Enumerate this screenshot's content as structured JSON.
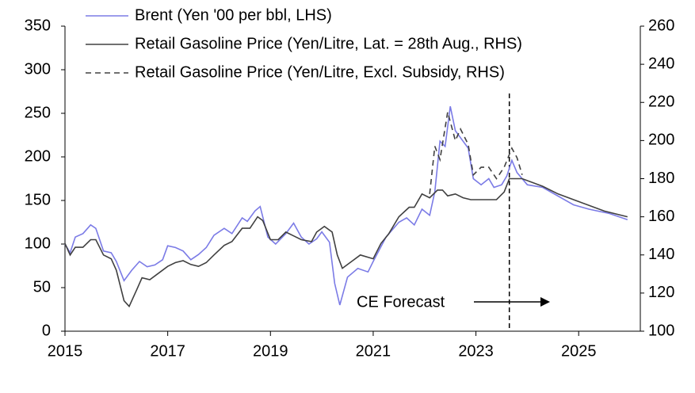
{
  "chart_data": {
    "type": "line",
    "series": [
      {
        "name": "Brent (Yen '00 per bbl, LHS)",
        "color": "#7b7be6",
        "dash": false,
        "axis": "y",
        "x": [
          2015.0,
          2015.1,
          2015.2,
          2015.35,
          2015.5,
          2015.6,
          2015.75,
          2015.9,
          2016.0,
          2016.15,
          2016.3,
          2016.45,
          2016.6,
          2016.75,
          2016.9,
          2017.0,
          2017.15,
          2017.3,
          2017.45,
          2017.6,
          2017.75,
          2017.9,
          2018.1,
          2018.25,
          2018.45,
          2018.55,
          2018.7,
          2018.8,
          2018.95,
          2019.1,
          2019.3,
          2019.45,
          2019.6,
          2019.75,
          2019.9,
          2020.0,
          2020.15,
          2020.25,
          2020.35,
          2020.5,
          2020.7,
          2020.9,
          2021.0,
          2021.25,
          2021.5,
          2021.65,
          2021.8,
          2021.95,
          2022.1,
          2022.2,
          2022.3,
          2022.4,
          2022.5,
          2022.6,
          2022.7,
          2022.85,
          2022.95,
          2023.1,
          2023.25,
          2023.35,
          2023.5,
          2023.6,
          2023.7,
          2023.8,
          2024.0,
          2024.3,
          2024.6,
          2024.9,
          2025.2,
          2025.6,
          2025.95
        ],
        "values": [
          100,
          90,
          108,
          112,
          122,
          118,
          92,
          90,
          80,
          58,
          70,
          80,
          74,
          76,
          82,
          98,
          96,
          92,
          82,
          88,
          96,
          110,
          118,
          112,
          130,
          126,
          138,
          143,
          108,
          100,
          112,
          124,
          108,
          100,
          106,
          114,
          102,
          55,
          30,
          62,
          72,
          68,
          80,
          108,
          125,
          130,
          122,
          140,
          133,
          160,
          218,
          212,
          258,
          230,
          222,
          210,
          175,
          168,
          175,
          165,
          168,
          178,
          196,
          182,
          168,
          165,
          155,
          145,
          140,
          135,
          128
        ]
      },
      {
        "name": "Retail Gasoline Price (Yen/Litre, Lat. = 28th Aug., RHS)",
        "color": "#404040",
        "dash": false,
        "axis": "y2",
        "x": [
          2015.0,
          2015.1,
          2015.2,
          2015.35,
          2015.5,
          2015.6,
          2015.75,
          2015.9,
          2016.0,
          2016.15,
          2016.25,
          2016.4,
          2016.5,
          2016.65,
          2016.8,
          2017.0,
          2017.15,
          2017.3,
          2017.45,
          2017.6,
          2017.75,
          2017.9,
          2018.1,
          2018.25,
          2018.45,
          2018.6,
          2018.75,
          2018.85,
          2019.0,
          2019.15,
          2019.3,
          2019.45,
          2019.6,
          2019.8,
          2019.9,
          2020.05,
          2020.2,
          2020.3,
          2020.4,
          2020.6,
          2020.75,
          2021.0,
          2021.15,
          2021.3,
          2021.5,
          2021.7,
          2021.8,
          2021.95,
          2022.1,
          2022.25,
          2022.35,
          2022.45,
          2022.6,
          2022.75,
          2022.9,
          2023.2,
          2023.4,
          2023.55,
          2023.65,
          2023.75,
          2023.9,
          2024.3,
          2024.6,
          2025.0,
          2025.5,
          2025.95
        ],
        "values": [
          146,
          140,
          144,
          144,
          148,
          148,
          140,
          138,
          132,
          116,
          113,
          122,
          128,
          127,
          130,
          134,
          136,
          137,
          135,
          134,
          136,
          140,
          145,
          147,
          154,
          154,
          160,
          158,
          148,
          148,
          152,
          150,
          148,
          147,
          152,
          155,
          152,
          140,
          133,
          137,
          140,
          138,
          146,
          151,
          160,
          165,
          165,
          172,
          170,
          174,
          174,
          171,
          172,
          170,
          169,
          169,
          169,
          173,
          180,
          180,
          180,
          176,
          172,
          168,
          163,
          160
        ]
      },
      {
        "name": "Retail Gasoline Price (Yen/Litre, Excl. Subsidy, RHS)",
        "color": "#404040",
        "dash": true,
        "axis": "y2",
        "x": [
          2022.1,
          2022.2,
          2022.3,
          2022.45,
          2022.6,
          2022.7,
          2022.85,
          2022.95,
          2023.1,
          2023.25,
          2023.4,
          2023.55,
          2023.7,
          2023.8,
          2023.9
        ],
        "values": [
          172,
          197,
          190,
          215,
          200,
          206,
          198,
          182,
          186,
          186,
          180,
          186,
          196,
          191,
          182
        ]
      }
    ],
    "xlim": [
      2015,
      2026.2
    ],
    "xticks": [
      2015,
      2017,
      2019,
      2021,
      2023,
      2025
    ],
    "ylim": [
      0,
      350
    ],
    "yticks": [
      0,
      50,
      100,
      150,
      200,
      250,
      300,
      350
    ],
    "y2lim": [
      100,
      260
    ],
    "y2ticks": [
      100,
      120,
      140,
      160,
      180,
      200,
      220,
      240,
      260
    ],
    "forecast_start": 2023.65,
    "annotation": "CE Forecast",
    "grid": false
  }
}
